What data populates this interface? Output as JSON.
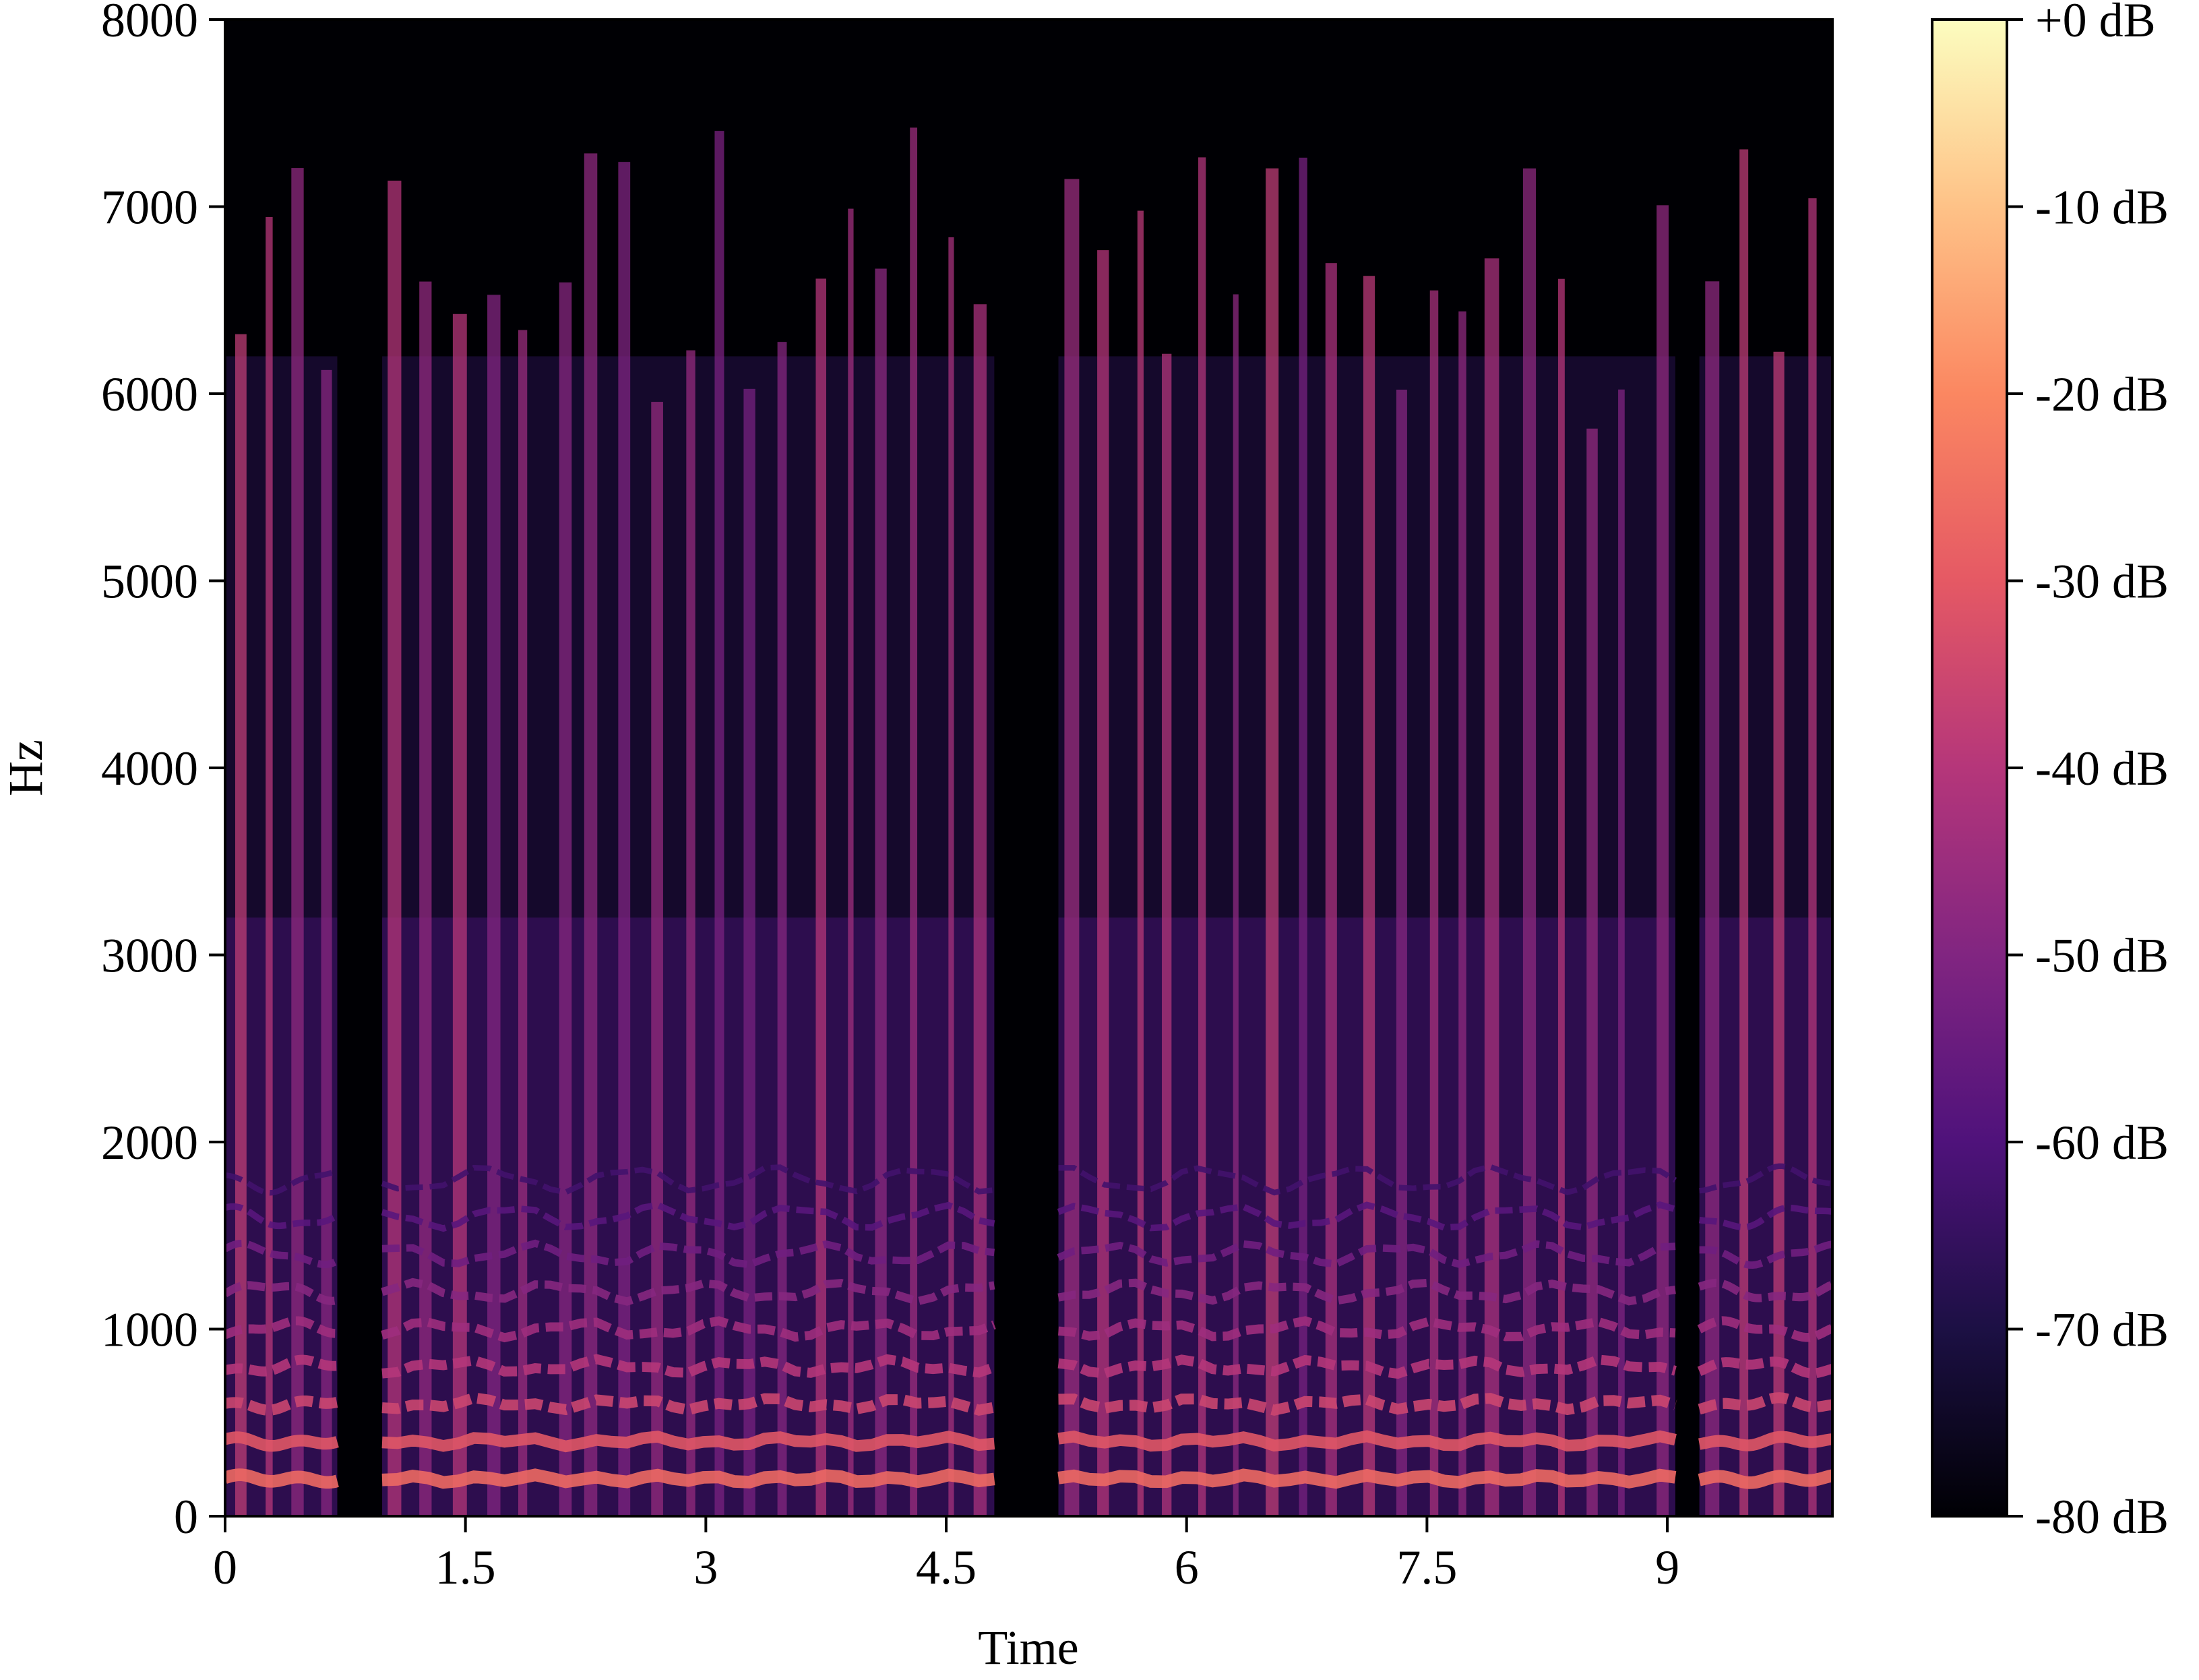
{
  "chart_data": {
    "type": "heatmap",
    "title": "",
    "xlabel": "Time",
    "ylabel": "Hz",
    "xlim": [
      0,
      10.03
    ],
    "ylim": [
      0,
      8000
    ],
    "x_ticks": [
      {
        "value": 0,
        "label": "0"
      },
      {
        "value": 1.5,
        "label": "1.5"
      },
      {
        "value": 3,
        "label": "3"
      },
      {
        "value": 4.5,
        "label": "4.5"
      },
      {
        "value": 6,
        "label": "6"
      },
      {
        "value": 7.5,
        "label": "7.5"
      },
      {
        "value": 9,
        "label": "9"
      }
    ],
    "y_ticks": [
      {
        "value": 0,
        "label": "0"
      },
      {
        "value": 1000,
        "label": "1000"
      },
      {
        "value": 2000,
        "label": "2000"
      },
      {
        "value": 3000,
        "label": "3000"
      },
      {
        "value": 4000,
        "label": "4000"
      },
      {
        "value": 5000,
        "label": "5000"
      },
      {
        "value": 6000,
        "label": "6000"
      },
      {
        "value": 7000,
        "label": "7000"
      },
      {
        "value": 8000,
        "label": "8000"
      }
    ],
    "colorbar": {
      "colormap": "magma",
      "range_db": [
        -80,
        0
      ],
      "ticks": [
        {
          "value": 0,
          "label": "+0 dB"
        },
        {
          "value": -10,
          "label": "-10 dB"
        },
        {
          "value": -20,
          "label": "-20 dB"
        },
        {
          "value": -30,
          "label": "-30 dB"
        },
        {
          "value": -40,
          "label": "-40 dB"
        },
        {
          "value": -50,
          "label": "-50 dB"
        },
        {
          "value": -60,
          "label": "-60 dB"
        },
        {
          "value": -70,
          "label": "-70 dB"
        },
        {
          "value": -80,
          "label": "-80 dB"
        }
      ],
      "colors": [
        "#000004",
        "#1c1044",
        "#4f127b",
        "#812581",
        "#b5367a",
        "#e55964",
        "#fb8761",
        "#fec287",
        "#fcfdbf"
      ]
    },
    "segments": [
      {
        "start": 0.0,
        "end": 0.7
      },
      {
        "start": 0.98,
        "end": 4.8
      },
      {
        "start": 5.2,
        "end": 9.05
      },
      {
        "start": 9.2,
        "end": 10.03
      }
    ],
    "f0_hz": 200,
    "background_db": -80
  }
}
